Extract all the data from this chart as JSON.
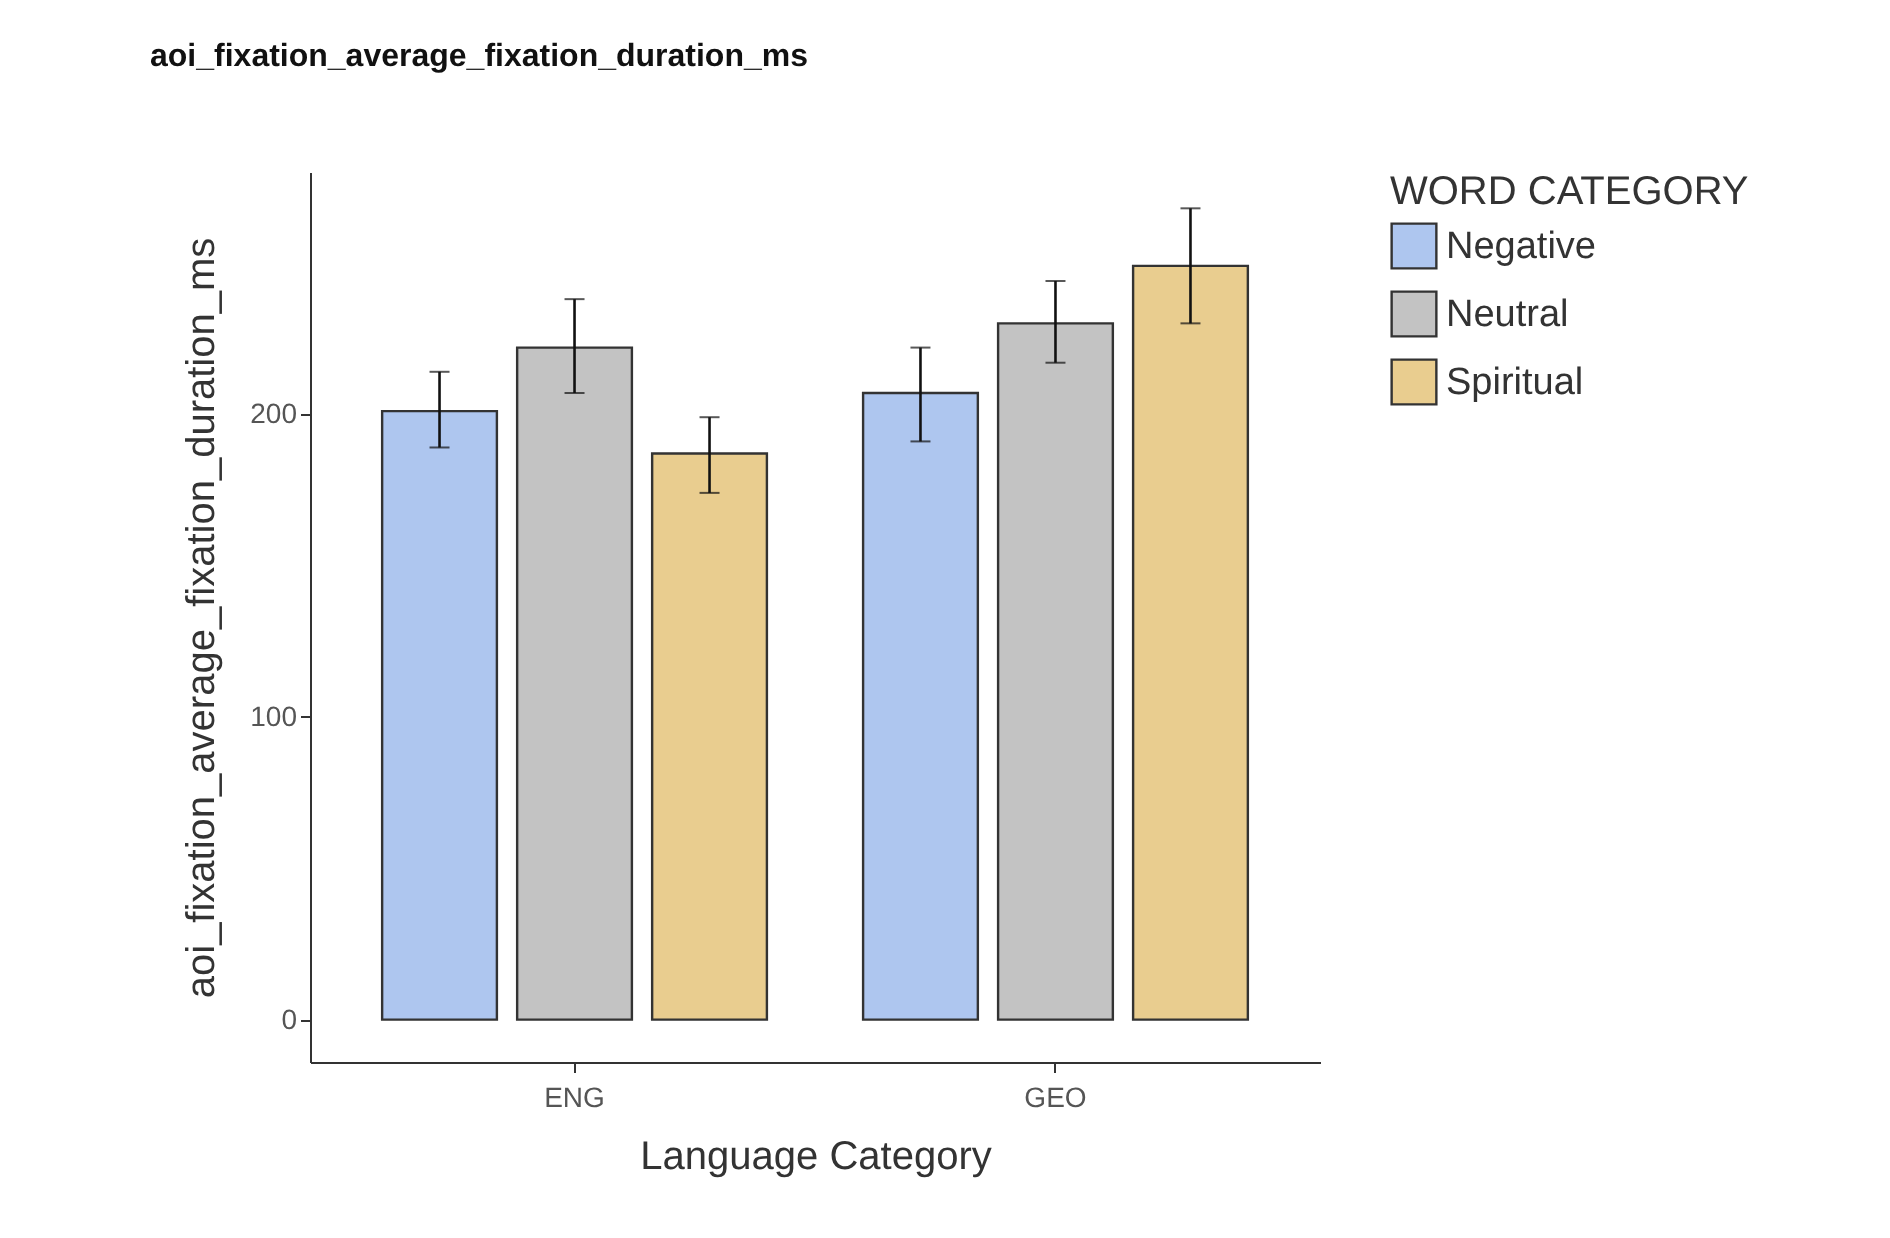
{
  "chart_data": {
    "type": "bar",
    "title": "aoi_fixation_average_fixation_duration_ms",
    "xlabel": "Language Category",
    "ylabel": "aoi_fixation_average_fixation_duration_ms",
    "legend_title": "WORD CATEGORY",
    "categories": [
      "ENG",
      "GEO"
    ],
    "series": [
      {
        "name": "Negative",
        "color": "#aec6ef",
        "values": [
          201,
          207
        ],
        "errors": [
          [
            189,
            214
          ],
          [
            191,
            222
          ]
        ]
      },
      {
        "name": "Neutral",
        "color": "#c3c3c3",
        "values": [
          222,
          230
        ],
        "errors": [
          [
            207,
            238
          ],
          [
            217,
            244
          ]
        ]
      },
      {
        "name": "Spiritual",
        "color": "#e9cd8f",
        "values": [
          187,
          249
        ],
        "errors": [
          [
            174,
            199
          ],
          [
            230,
            268
          ]
        ]
      }
    ],
    "ylim": [
      -14,
      280
    ],
    "yticks": [
      0,
      100,
      200
    ],
    "grid": false,
    "legend": "right"
  }
}
